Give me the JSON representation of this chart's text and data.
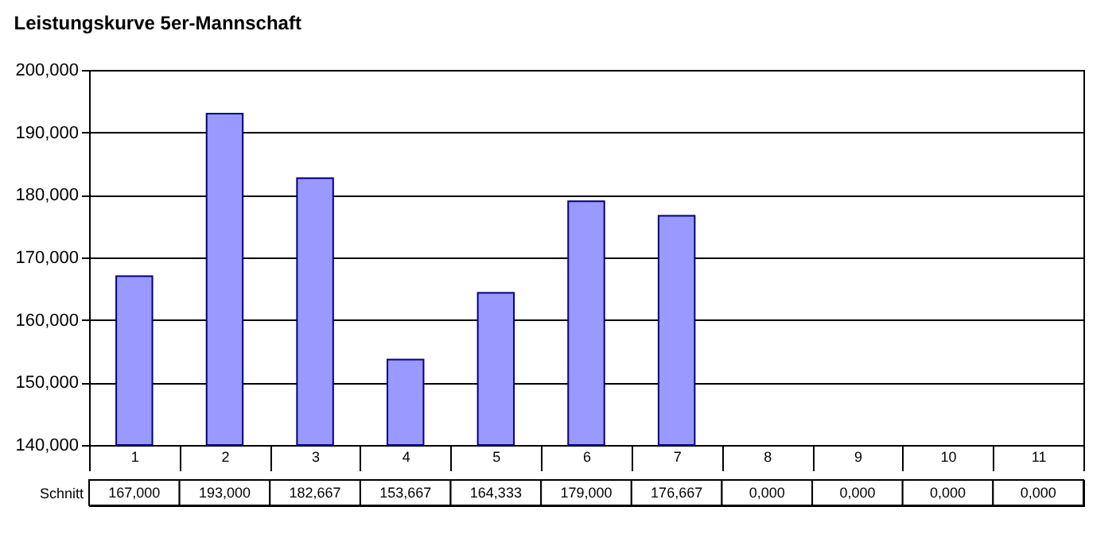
{
  "chart_data": {
    "type": "bar",
    "title": "Leistungskurve 5er-Mannschaft",
    "categories": [
      "1",
      "2",
      "3",
      "4",
      "5",
      "6",
      "7",
      "8",
      "9",
      "10",
      "11"
    ],
    "series": [
      {
        "name": "Schnitt",
        "color": "#9999ff",
        "values": [
          167,
          193,
          182.667,
          153.667,
          164.333,
          179,
          176.667,
          null,
          null,
          null,
          null
        ],
        "value_labels": [
          "167,000",
          "193,000",
          "182,667",
          "153,667",
          "164,333",
          "179,000",
          "176,667",
          "0,000",
          "0,000",
          "0,000",
          "0,000"
        ]
      }
    ],
    "ylim": [
      140,
      200
    ],
    "yticks": [
      {
        "value": 140,
        "label": "140,000"
      },
      {
        "value": 150,
        "label": "150,000"
      },
      {
        "value": 160,
        "label": "160,000"
      },
      {
        "value": 170,
        "label": "170,000"
      },
      {
        "value": 180,
        "label": "180,000"
      },
      {
        "value": 190,
        "label": "190,000"
      },
      {
        "value": 200,
        "label": "200,000"
      }
    ],
    "grid": "y",
    "legend": false
  }
}
